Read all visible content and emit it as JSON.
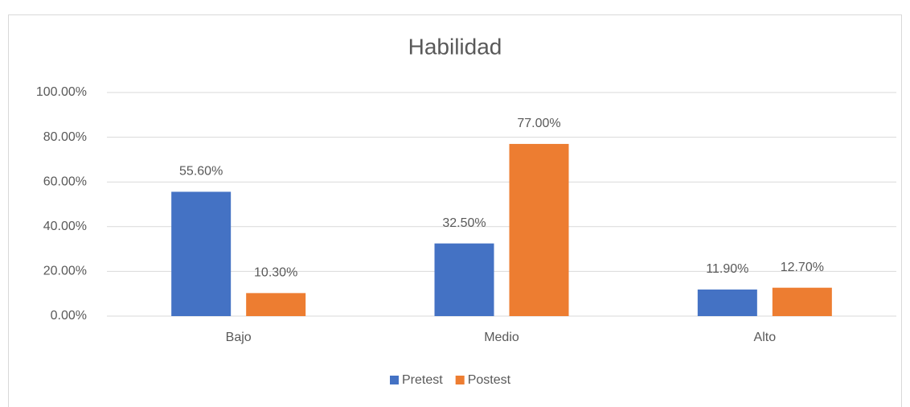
{
  "chart_data": {
    "type": "bar",
    "title": "Habilidad",
    "categories": [
      "Bajo",
      "Medio",
      "Alto"
    ],
    "series": [
      {
        "name": "Pretest",
        "color": "#4472c4",
        "values": [
          55.6,
          32.5,
          11.9
        ],
        "value_labels": [
          "55.60%",
          "32.50%",
          "11.90%"
        ]
      },
      {
        "name": "Postest",
        "color": "#ed7d31",
        "values": [
          10.3,
          77,
          12.7
        ],
        "value_labels": [
          "10.30%",
          "77.00%",
          "12.70%"
        ]
      }
    ],
    "ylim": [
      0,
      100
    ],
    "yticks": [
      {
        "value": 0,
        "label": "0.00%"
      },
      {
        "value": 20,
        "label": "20.00%"
      },
      {
        "value": 40,
        "label": "40.00%"
      },
      {
        "value": 60,
        "label": "60.00%"
      },
      {
        "value": 80,
        "label": "80.00%"
      },
      {
        "value": 100,
        "label": "100.00%"
      }
    ],
    "grid": true,
    "legend": "bottom"
  }
}
